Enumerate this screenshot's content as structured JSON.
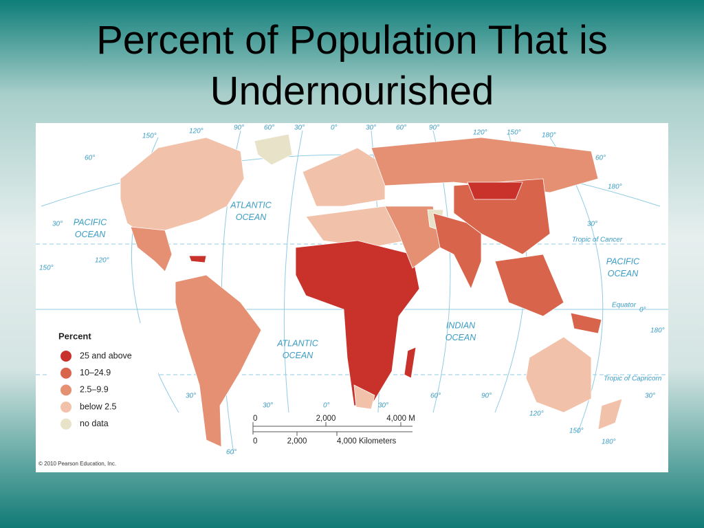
{
  "title": "Percent of Population That is Undernourished",
  "map": {
    "legend": {
      "title": "Percent",
      "items": [
        {
          "label": "25 and above",
          "color": "#c8322b"
        },
        {
          "label": "10–24.9",
          "color": "#d9644c"
        },
        {
          "label": "2.5–9.9",
          "color": "#e58f73"
        },
        {
          "label": "below 2.5",
          "color": "#f2c1aa"
        },
        {
          "label": "no data",
          "color": "#e7e2c8"
        }
      ]
    },
    "ocean_labels": [
      [
        "PACIFIC",
        "OCEAN"
      ],
      [
        "ATLANTIC",
        "OCEAN"
      ],
      [
        "PACIFIC",
        "OCEAN"
      ],
      [
        "INDIAN",
        "OCEAN"
      ],
      [
        "ATLANTIC",
        "OCEAN"
      ]
    ],
    "lines": [
      "Tropic of Cancer",
      "Equator",
      "Tropic of Capricorn"
    ],
    "degree_labels": [
      "150°",
      "120°",
      "90°",
      "60°",
      "30°",
      "0°",
      "30°",
      "60°",
      "90°",
      "120°",
      "150°",
      "180°",
      "60°",
      "180°",
      "30°",
      "60°",
      "30°",
      "120°",
      "150°",
      "30°",
      "30°",
      "0°",
      "30°",
      "60°",
      "90°",
      "120°",
      "150°",
      "180°",
      "60°",
      "180°",
      "30°",
      "0°"
    ],
    "scale": {
      "miles": [
        "0",
        "2,000",
        "4,000 M"
      ],
      "km": [
        "0",
        "2,000",
        "4,000 Kilometers"
      ]
    },
    "copyright": "© 2010 Pearson Education, Inc."
  }
}
